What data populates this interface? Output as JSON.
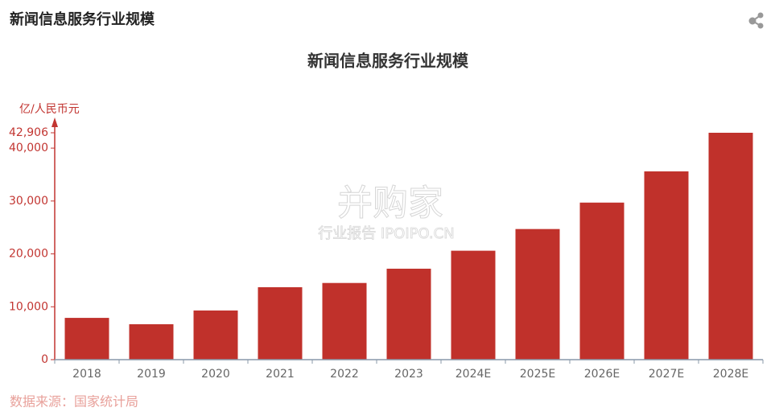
{
  "header": {
    "title": "新闻信息服务行业规模"
  },
  "chart_data": {
    "type": "bar",
    "title": "新闻信息服务行业规模",
    "y_label": "亿/人民币元",
    "categories": [
      "2018",
      "2019",
      "2020",
      "2021",
      "2022",
      "2023",
      "2024E",
      "2025E",
      "2026E",
      "2027E",
      "2028E"
    ],
    "values": [
      7900,
      6700,
      9300,
      13700,
      14500,
      17200,
      20600,
      24700,
      29700,
      35600,
      42906
    ],
    "color": "#c0312b",
    "ylim": [
      0,
      42906
    ],
    "yticks": [
      0,
      {
        "value": 10000,
        "label": "10,000"
      },
      {
        "value": 20000,
        "label": "20,000"
      },
      {
        "value": 30000,
        "label": "30,000"
      },
      {
        "value": 40000,
        "label": "40,000"
      },
      {
        "value": 42906,
        "label": "42,906"
      }
    ],
    "grid": false
  },
  "source": "数据来源：国家统计局",
  "watermark": {
    "brand": "并购家",
    "text": "行业报告 IPOIPO.CN"
  }
}
